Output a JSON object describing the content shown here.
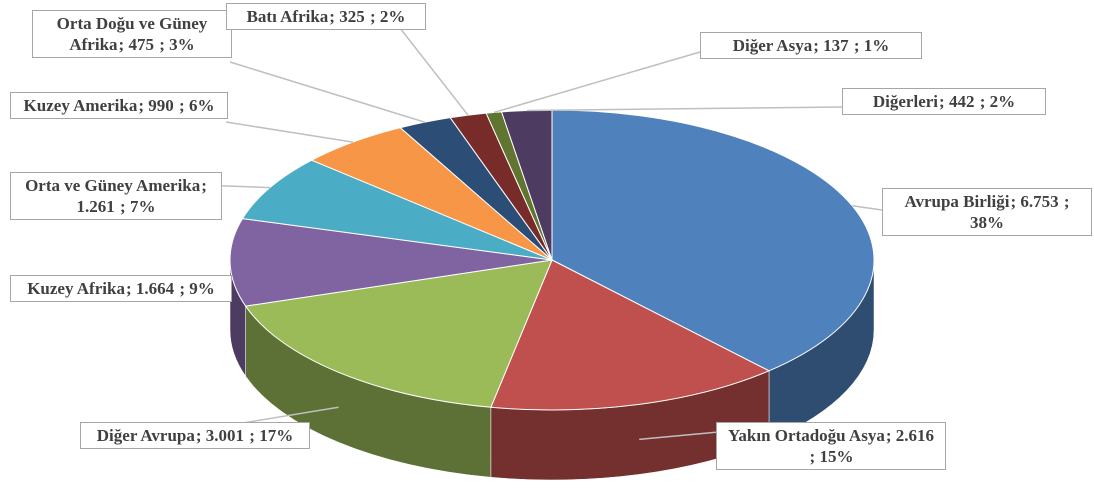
{
  "chart_data": {
    "type": "pie3d",
    "categories": [
      "Avrupa Birliği",
      "Yakın Ortadoğu Asya",
      "Diğer Avrupa",
      "Kuzey Afrika",
      "Orta ve Güney Amerika",
      "Kuzey Amerika",
      "Orta Doğu ve Güney Afrika",
      "Batı Afrika",
      "Diğer Asya",
      "Diğerleri"
    ],
    "values": [
      6753,
      2616,
      3001,
      1664,
      1261,
      990,
      475,
      325,
      137,
      442
    ],
    "value_labels": [
      "6.753",
      "2.616",
      "3.001",
      "1.664",
      "1.261",
      "990",
      "475",
      "325",
      "137",
      "442"
    ],
    "percentages": [
      38,
      15,
      17,
      9,
      7,
      6,
      3,
      2,
      1,
      2
    ],
    "percentage_labels": [
      "38%",
      "15%",
      "17%",
      "9%",
      "7%",
      "6%",
      "3%",
      "2%",
      "1%",
      "2%"
    ],
    "separator": ";",
    "colors": [
      "#4f81bd",
      "#c0504d",
      "#9bbb59",
      "#8064a2",
      "#4bacc6",
      "#f79646",
      "#2c4d75",
      "#772c2a",
      "#5f7530",
      "#4d3b62"
    ]
  }
}
